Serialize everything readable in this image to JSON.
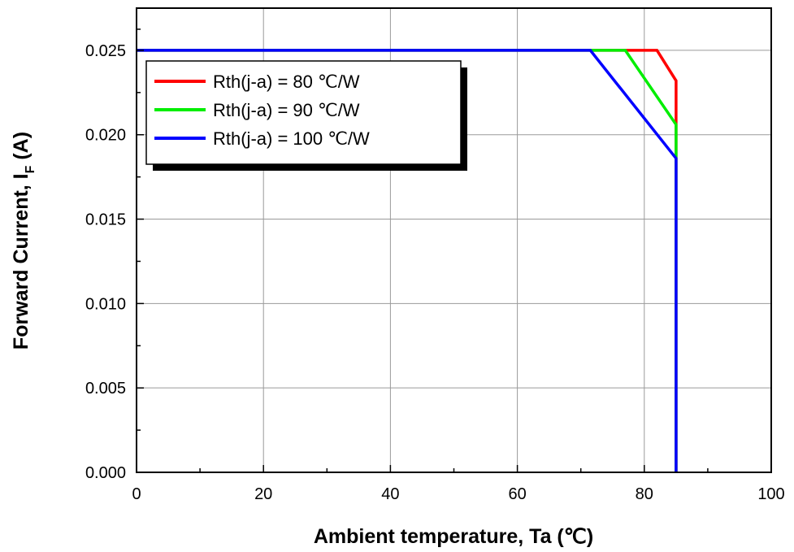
{
  "chart_data": {
    "type": "line",
    "xlabel": "Ambient temperature, Ta (℃)",
    "ylabel": "Forward Current, I",
    "ylabel_subscript": "F",
    "ylabel_suffix": " (A)",
    "xlim": [
      0,
      100
    ],
    "ylim": [
      0,
      0.0275
    ],
    "x_ticks": [
      0,
      20,
      40,
      60,
      80,
      100
    ],
    "x_tick_labels": [
      "0",
      "20",
      "40",
      "60",
      "80",
      "100"
    ],
    "y_ticks": [
      0,
      0.005,
      0.01,
      0.015,
      0.02,
      0.025
    ],
    "y_tick_labels": [
      "0.000",
      "0.005",
      "0.010",
      "0.015",
      "0.020",
      "0.025"
    ],
    "grid": true,
    "legend_position": "top-left",
    "series": [
      {
        "name": "Rth(j-a) = 80 ℃/W",
        "color": "#ff0000",
        "points": [
          [
            0,
            0.025
          ],
          [
            82,
            0.025
          ],
          [
            85,
            0.0232
          ],
          [
            85,
            0
          ]
        ]
      },
      {
        "name": "Rth(j-a) = 90 ℃/W",
        "color": "#00ee00",
        "points": [
          [
            0,
            0.025
          ],
          [
            77,
            0.025
          ],
          [
            85,
            0.0206
          ],
          [
            85,
            0
          ]
        ]
      },
      {
        "name": "Rth(j-a) = 100 ℃/W",
        "color": "#0000ff",
        "points": [
          [
            0,
            0.025
          ],
          [
            71.5,
            0.025
          ],
          [
            85,
            0.0186
          ],
          [
            85,
            0
          ]
        ]
      }
    ]
  }
}
